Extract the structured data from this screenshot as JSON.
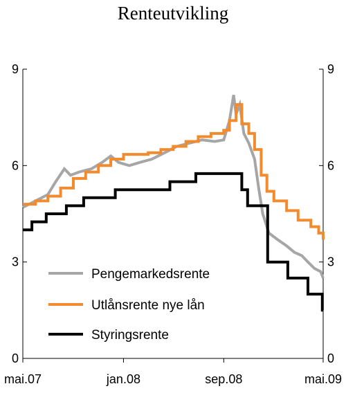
{
  "chart_data": {
    "type": "line",
    "title": "Renteutvikling",
    "x_start": "2007-05-01",
    "x_end": "2009-05-01",
    "x_ticks": [
      {
        "date": "2007-05-01",
        "label": "mai.07"
      },
      {
        "date": "2008-01-01",
        "label": "jan.08"
      },
      {
        "date": "2008-09-01",
        "label": "sep.08"
      },
      {
        "date": "2009-05-01",
        "label": "mai.09"
      }
    ],
    "ylim": [
      0,
      9
    ],
    "y_ticks": [
      0,
      3,
      6,
      9
    ],
    "y_tick_labels": [
      "0",
      "3",
      "6",
      "9"
    ],
    "right_axis_mirrored": true,
    "legend_position": "bottom-left",
    "series": [
      {
        "name": "Pengemarkedsrente",
        "color": "#a6a6a6",
        "step": false,
        "points": [
          [
            "2007-05-01",
            4.7
          ],
          [
            "2007-06-01",
            4.9
          ],
          [
            "2007-07-01",
            5.1
          ],
          [
            "2007-07-20",
            5.5
          ],
          [
            "2007-08-10",
            5.9
          ],
          [
            "2007-08-25",
            5.7
          ],
          [
            "2007-09-15",
            5.8
          ],
          [
            "2007-10-15",
            5.9
          ],
          [
            "2007-11-10",
            6.1
          ],
          [
            "2007-12-01",
            6.3
          ],
          [
            "2007-12-20",
            6.1
          ],
          [
            "2008-01-15",
            6.0
          ],
          [
            "2008-02-10",
            6.1
          ],
          [
            "2008-03-10",
            6.2
          ],
          [
            "2008-04-10",
            6.4
          ],
          [
            "2008-05-10",
            6.6
          ],
          [
            "2008-06-10",
            6.7
          ],
          [
            "2008-07-10",
            6.8
          ],
          [
            "2008-08-10",
            6.75
          ],
          [
            "2008-09-01",
            6.8
          ],
          [
            "2008-09-15",
            7.4
          ],
          [
            "2008-09-25",
            8.2
          ],
          [
            "2008-10-01",
            7.6
          ],
          [
            "2008-10-10",
            7.9
          ],
          [
            "2008-10-20",
            7.0
          ],
          [
            "2008-11-01",
            6.7
          ],
          [
            "2008-11-15",
            6.2
          ],
          [
            "2008-11-25",
            5.3
          ],
          [
            "2008-12-05",
            4.5
          ],
          [
            "2008-12-20",
            3.9
          ],
          [
            "2009-01-10",
            3.7
          ],
          [
            "2009-02-01",
            3.5
          ],
          [
            "2009-02-20",
            3.3
          ],
          [
            "2009-03-10",
            3.2
          ],
          [
            "2009-03-25",
            3.0
          ],
          [
            "2009-04-10",
            2.8
          ],
          [
            "2009-04-25",
            2.7
          ],
          [
            "2009-05-01",
            2.5
          ]
        ]
      },
      {
        "name": "Utlånsrente nye lån",
        "color": "#f28a2e",
        "step": true,
        "points": [
          [
            "2007-05-01",
            4.8
          ],
          [
            "2007-06-01",
            4.9
          ],
          [
            "2007-07-01",
            5.05
          ],
          [
            "2007-08-01",
            5.3
          ],
          [
            "2007-09-01",
            5.6
          ],
          [
            "2007-10-01",
            5.8
          ],
          [
            "2007-11-01",
            6.0
          ],
          [
            "2007-12-01",
            6.2
          ],
          [
            "2008-01-01",
            6.35
          ],
          [
            "2008-02-01",
            6.35
          ],
          [
            "2008-03-01",
            6.4
          ],
          [
            "2008-04-01",
            6.5
          ],
          [
            "2008-05-01",
            6.6
          ],
          [
            "2008-06-01",
            6.75
          ],
          [
            "2008-07-01",
            6.9
          ],
          [
            "2008-08-01",
            7.0
          ],
          [
            "2008-09-01",
            7.1
          ],
          [
            "2008-09-15",
            7.4
          ],
          [
            "2008-10-01",
            7.9
          ],
          [
            "2008-10-15",
            7.3
          ],
          [
            "2008-11-01",
            7.0
          ],
          [
            "2008-11-15",
            6.5
          ],
          [
            "2008-12-01",
            5.7
          ],
          [
            "2008-12-15",
            5.2
          ],
          [
            "2009-01-01",
            4.9
          ],
          [
            "2009-02-01",
            4.6
          ],
          [
            "2009-03-01",
            4.3
          ],
          [
            "2009-04-01",
            4.1
          ],
          [
            "2009-04-20",
            3.9
          ],
          [
            "2009-05-01",
            3.7
          ]
        ]
      },
      {
        "name": "Styringsrente",
        "color": "#000000",
        "step": true,
        "points": [
          [
            "2007-05-01",
            4.0
          ],
          [
            "2007-05-23",
            4.25
          ],
          [
            "2007-06-27",
            4.5
          ],
          [
            "2007-08-15",
            4.75
          ],
          [
            "2007-09-26",
            5.0
          ],
          [
            "2007-12-12",
            5.25
          ],
          [
            "2008-04-23",
            5.5
          ],
          [
            "2008-06-25",
            5.75
          ],
          [
            "2008-10-15",
            5.25
          ],
          [
            "2008-10-29",
            4.75
          ],
          [
            "2008-12-17",
            3.0
          ],
          [
            "2009-02-04",
            2.5
          ],
          [
            "2009-03-25",
            2.0
          ],
          [
            "2009-04-29",
            1.5
          ],
          [
            "2009-05-01",
            1.5
          ]
        ]
      }
    ]
  }
}
